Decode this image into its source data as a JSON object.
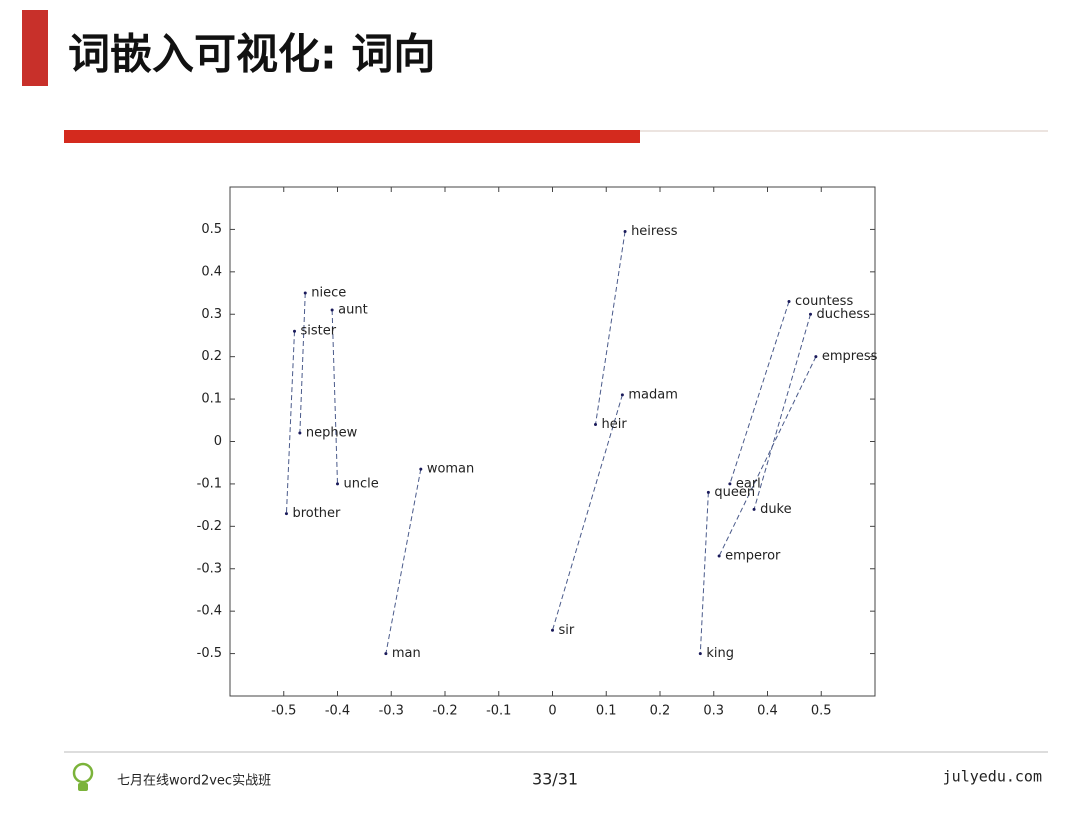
{
  "header": {
    "title": "词嵌入可视化: 词向"
  },
  "chart_data": {
    "type": "scatter",
    "point_labels": [
      "niece",
      "aunt",
      "sister",
      "nephew",
      "uncle",
      "brother",
      "woman",
      "man",
      "heiress",
      "madam",
      "heir",
      "sir",
      "countess",
      "duchess",
      "empress",
      "earl",
      "queen",
      "duke",
      "emperor",
      "king"
    ],
    "x": [
      -0.46,
      -0.41,
      -0.48,
      -0.47,
      -0.4,
      -0.495,
      -0.245,
      -0.31,
      0.135,
      0.13,
      0.08,
      0.0,
      0.44,
      0.48,
      0.49,
      0.33,
      0.29,
      0.375,
      0.31,
      0.275
    ],
    "values": [
      0.35,
      0.31,
      0.26,
      0.02,
      -0.1,
      -0.17,
      -0.065,
      -0.5,
      0.495,
      0.11,
      0.04,
      -0.445,
      0.33,
      0.3,
      0.2,
      -0.1,
      -0.12,
      -0.16,
      -0.27,
      -0.5
    ],
    "pairs": [
      [
        0,
        3
      ],
      [
        1,
        4
      ],
      [
        2,
        5
      ],
      [
        6,
        7
      ],
      [
        8,
        10
      ],
      [
        9,
        11
      ],
      [
        12,
        15
      ],
      [
        13,
        17
      ],
      [
        14,
        18
      ],
      [
        16,
        19
      ]
    ],
    "color": "#1a1a5a",
    "xlim": [
      -0.6,
      0.6
    ],
    "ylim": [
      -0.6,
      0.6
    ],
    "xticks": [
      -0.5,
      -0.4,
      -0.3,
      -0.2,
      -0.1,
      0,
      0.1,
      0.2,
      0.3,
      0.4,
      0.5
    ],
    "yticks": [
      -0.5,
      -0.4,
      -0.3,
      -0.2,
      -0.1,
      0,
      0.1,
      0.2,
      0.3,
      0.4,
      0.5
    ]
  },
  "footer": {
    "course": "七月在线word2vec实战班",
    "page": "33/31",
    "site": "julyedu.com"
  }
}
